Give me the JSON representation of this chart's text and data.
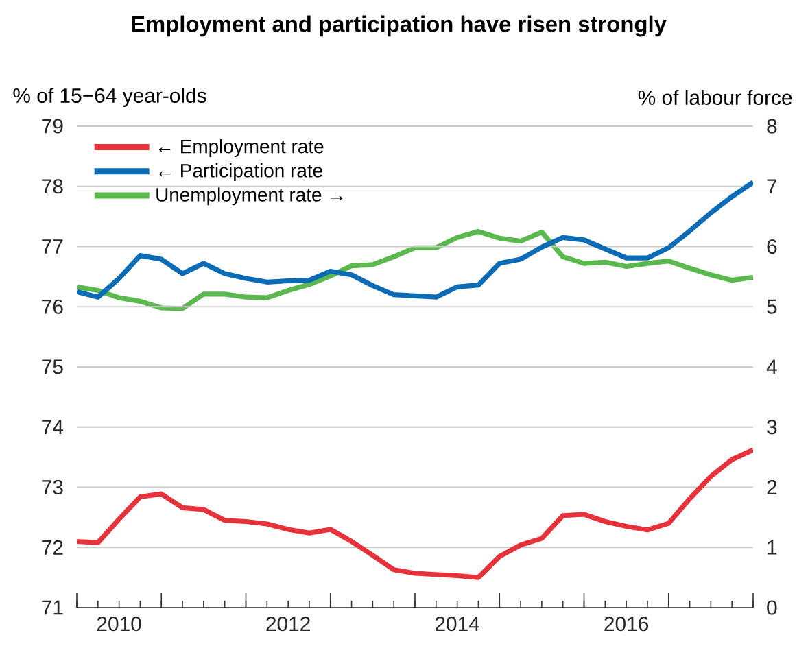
{
  "chart_data": {
    "type": "line",
    "title": "Employment and participation have risen strongly",
    "ylabel": "% of 15−64 year-olds",
    "y2label": "% of labour force",
    "x": [
      2010,
      2010.25,
      2010.5,
      2010.75,
      2011,
      2011.25,
      2011.5,
      2011.75,
      2012,
      2012.25,
      2012.5,
      2012.75,
      2013,
      2013.25,
      2013.5,
      2013.75,
      2014,
      2014.25,
      2014.5,
      2014.75,
      2015,
      2015.25,
      2015.5,
      2015.75,
      2016,
      2016.25,
      2016.5,
      2016.75,
      2017,
      2017.25,
      2017.5,
      2017.75,
      2018
    ],
    "xlim": [
      2010,
      2018
    ],
    "xticks": [
      {
        "value": 2010,
        "label": null
      },
      {
        "value": 2010.25,
        "label": null
      },
      {
        "value": 2010.5,
        "label": "2010"
      },
      {
        "value": 2010.75,
        "label": null
      },
      {
        "value": 2011,
        "label": null
      },
      {
        "value": 2011.25,
        "label": null
      },
      {
        "value": 2011.5,
        "label": null
      },
      {
        "value": 2011.75,
        "label": null
      },
      {
        "value": 2012,
        "label": null
      },
      {
        "value": 2012.25,
        "label": null
      },
      {
        "value": 2012.5,
        "label": "2012"
      },
      {
        "value": 2012.75,
        "label": null
      },
      {
        "value": 2013,
        "label": null
      },
      {
        "value": 2013.25,
        "label": null
      },
      {
        "value": 2013.5,
        "label": null
      },
      {
        "value": 2013.75,
        "label": null
      },
      {
        "value": 2014,
        "label": null
      },
      {
        "value": 2014.25,
        "label": null
      },
      {
        "value": 2014.5,
        "label": "2014"
      },
      {
        "value": 2014.75,
        "label": null
      },
      {
        "value": 2015,
        "label": null
      },
      {
        "value": 2015.25,
        "label": null
      },
      {
        "value": 2015.5,
        "label": null
      },
      {
        "value": 2015.75,
        "label": null
      },
      {
        "value": 2016,
        "label": null
      },
      {
        "value": 2016.25,
        "label": null
      },
      {
        "value": 2016.5,
        "label": "2016"
      },
      {
        "value": 2016.75,
        "label": null
      },
      {
        "value": 2017,
        "label": null
      },
      {
        "value": 2017.25,
        "label": null
      },
      {
        "value": 2017.5,
        "label": null
      },
      {
        "value": 2017.75,
        "label": null
      },
      {
        "value": 2018,
        "label": null
      }
    ],
    "ylim": [
      71,
      79
    ],
    "yticks": [
      71,
      72,
      73,
      74,
      75,
      76,
      77,
      78,
      79
    ],
    "y2lim": [
      0,
      8
    ],
    "y2ticks": [
      0,
      1,
      2,
      3,
      4,
      5,
      6,
      7,
      8
    ],
    "grid": "y",
    "legend": "top left",
    "marker": "none",
    "line_style": "solid",
    "series": [
      {
        "name": "← Employment rate",
        "color": "#e5323b",
        "values": [
          72.1,
          72.08,
          72.47,
          72.84,
          72.89,
          72.66,
          72.63,
          72.45,
          72.43,
          72.39,
          72.3,
          72.24,
          72.3,
          72.1,
          71.87,
          71.63,
          71.57,
          71.55,
          71.53,
          71.5,
          71.85,
          72.04,
          72.15,
          72.53,
          72.55,
          72.43,
          72.35,
          72.29,
          72.4,
          72.81,
          73.18,
          73.46,
          73.62
        ]
      },
      {
        "name": "← Participation rate",
        "color": "#0b6cb5",
        "values": [
          76.25,
          76.16,
          76.47,
          76.85,
          76.79,
          76.55,
          76.72,
          76.55,
          76.47,
          76.41,
          76.43,
          76.44,
          76.59,
          76.53,
          76.35,
          76.2,
          76.18,
          76.16,
          76.33,
          76.36,
          76.72,
          76.79,
          76.99,
          77.15,
          77.11,
          76.96,
          76.81,
          76.81,
          76.98,
          77.26,
          77.56,
          77.83,
          78.07
        ]
      },
      {
        "name": "Unemployment rate →",
        "color": "#5bb84e",
        "axis": "y2",
        "values": [
          5.33,
          5.27,
          5.15,
          5.09,
          4.98,
          4.97,
          5.21,
          5.21,
          5.16,
          5.15,
          5.27,
          5.37,
          5.51,
          5.68,
          5.7,
          5.83,
          5.98,
          5.98,
          6.15,
          6.25,
          6.14,
          6.09,
          6.24,
          5.83,
          5.72,
          5.74,
          5.67,
          5.72,
          5.76,
          5.64,
          5.53,
          5.44,
          5.49
        ]
      }
    ]
  }
}
